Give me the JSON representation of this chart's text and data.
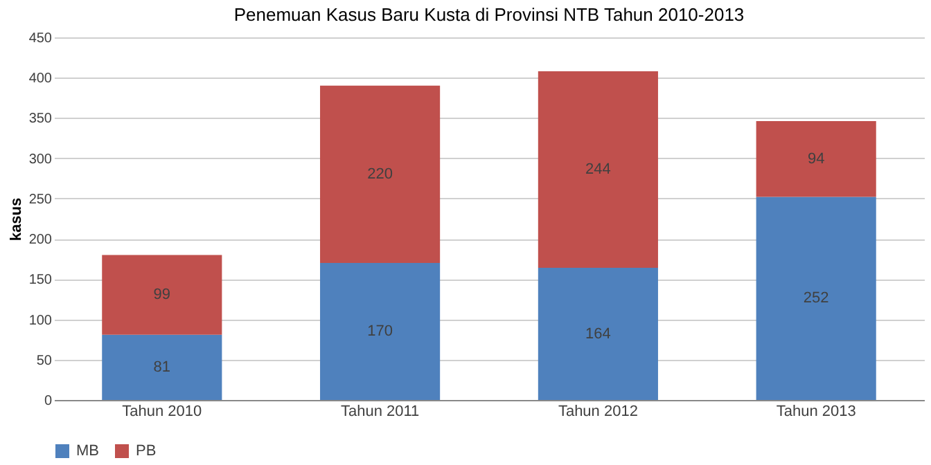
{
  "chart_data": {
    "type": "bar",
    "title": "Penemuan Kasus Baru Kusta di Provinsi NTB Tahun 2010-2013",
    "ylabel": "kasus",
    "categories": [
      "Tahun 2010",
      "Tahun 2011",
      "Tahun 2012",
      "Tahun 2013"
    ],
    "series": [
      {
        "name": "MB",
        "color": "#4f81bd",
        "values": [
          81,
          170,
          164,
          252
        ]
      },
      {
        "name": "PB",
        "color": "#c0504d",
        "values": [
          99,
          220,
          244,
          94
        ]
      }
    ],
    "stacked": true,
    "ylim": [
      0,
      450
    ],
    "yticks": [
      0,
      50,
      100,
      150,
      200,
      250,
      300,
      350,
      400,
      450
    ],
    "grid": "y",
    "legend": "bottom",
    "data_labels": true
  }
}
